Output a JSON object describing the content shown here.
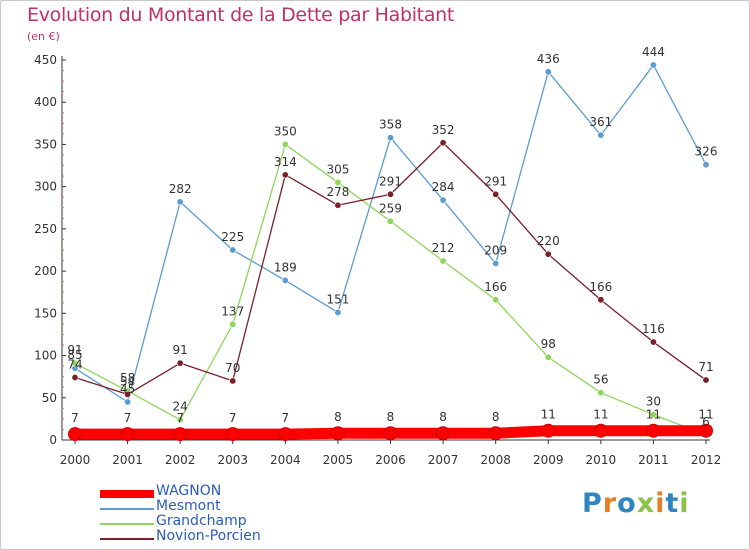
{
  "header": {
    "title": "Evolution du Montant de la Dette par Habitant",
    "subtitle": "(en €)"
  },
  "logo": {
    "text": "Proxiti"
  },
  "chart_data": {
    "type": "line",
    "title": "Evolution du Montant de la Dette par Habitant",
    "subtitle": "(en €)",
    "x": [
      "2000",
      "2001",
      "2002",
      "2003",
      "2004",
      "2005",
      "2006",
      "2007",
      "2008",
      "2009",
      "2010",
      "2011",
      "2012"
    ],
    "yticks": [
      "0",
      "50",
      "100",
      "150",
      "200",
      "250",
      "300",
      "350",
      "400",
      "450"
    ],
    "ylim": [
      0,
      450
    ],
    "grid": false,
    "legend_position": "bottom-left",
    "series": [
      {
        "name": "WAGNON",
        "color": "#ff0000",
        "highlight": true,
        "values": [
          7,
          7,
          7,
          7,
          7,
          8,
          8,
          8,
          8,
          11,
          11,
          11,
          11
        ],
        "labels": [
          "7",
          "7",
          "7",
          "7",
          "7",
          "8",
          "8",
          "8",
          "8",
          "11",
          "11",
          "11",
          "11"
        ]
      },
      {
        "name": "Mesmont",
        "color": "#5b9bd5",
        "values": [
          85,
          45,
          282,
          225,
          189,
          151,
          358,
          284,
          209,
          436,
          361,
          444,
          326
        ],
        "labels": [
          "85",
          "45",
          "282",
          "225",
          "189",
          "151",
          "358",
          "284",
          "209",
          "436",
          "361",
          "444",
          "326"
        ]
      },
      {
        "name": "Grandchamp",
        "color": "#8ed65a",
        "values": [
          91,
          58,
          24,
          137,
          350,
          305,
          259,
          212,
          166,
          98,
          56,
          30,
          6
        ],
        "labels": [
          "91",
          "58",
          "24",
          "137",
          "350",
          "305",
          "259",
          "212",
          "166",
          "98",
          "56",
          "30",
          "6"
        ]
      },
      {
        "name": "Novion-Porcien",
        "color": "#7b1f2c",
        "values": [
          74,
          54,
          91,
          70,
          314,
          278,
          291,
          352,
          291,
          220,
          166,
          116,
          71
        ],
        "labels": [
          "74",
          "54",
          "91",
          "70",
          "314",
          "278",
          "291",
          "352",
          "291",
          "220",
          "166",
          "116",
          "71"
        ]
      }
    ]
  }
}
